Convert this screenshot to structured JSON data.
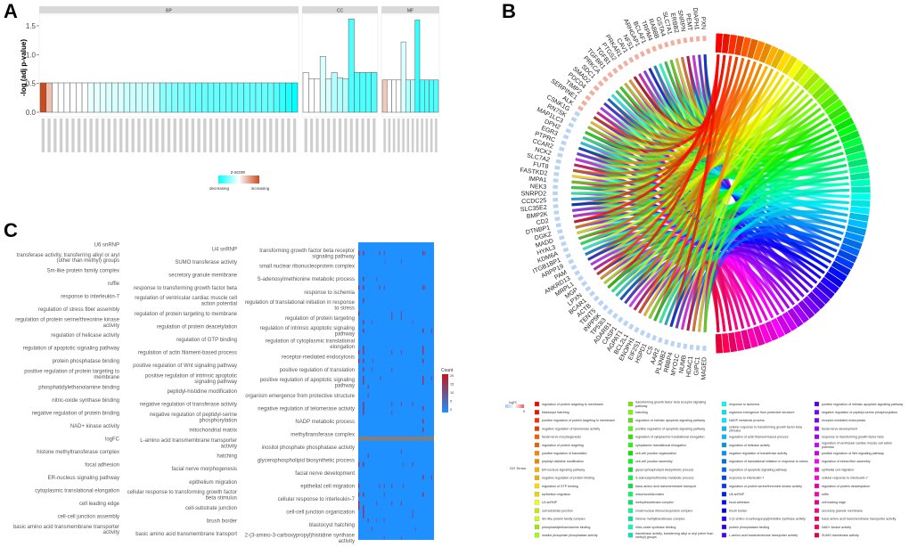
{
  "panels": {
    "a": "A",
    "b": "B",
    "c": "C"
  },
  "chart_data": [
    {
      "panel": "A",
      "type": "bar",
      "ylabel": "-log (adj p-value)",
      "ylim": [
        0,
        1.7
      ],
      "yticks": [
        "0.0",
        "0.5",
        "1.0",
        "1.5"
      ],
      "facets": [
        {
          "name": "BP",
          "values": [
            0.51,
            0.51,
            0.51,
            0.51,
            0.51,
            0.51,
            0.51,
            0.51,
            0.51,
            0.51,
            0.51,
            0.51,
            0.51,
            0.51,
            0.51,
            0.51,
            0.51,
            0.51,
            0.51,
            0.51,
            0.51,
            0.51,
            0.51,
            0.51,
            0.51,
            0.51,
            0.51,
            0.51,
            0.51,
            0.51,
            0.51,
            0.51,
            0.51,
            0.51,
            0.51,
            0.51,
            0.51,
            0.51,
            0.51,
            0.51,
            0.51,
            0.51,
            0.51
          ],
          "zscore": [
            1,
            0.35,
            0,
            0,
            0,
            0,
            0,
            0,
            -0.1,
            -0.1,
            -0.1,
            -0.15,
            -0.15,
            -0.15,
            -0.2,
            -0.2,
            -0.2,
            -0.2,
            -0.2,
            -0.25,
            -0.45,
            -0.45,
            -0.5,
            -0.5,
            -0.55,
            -0.55,
            -0.6,
            -0.6,
            -0.6,
            -0.6,
            -0.6,
            -0.6,
            -0.6,
            -0.6,
            -0.6,
            -0.6,
            -0.6,
            -0.6,
            -0.6,
            -0.7,
            -0.8,
            -0.9,
            -1
          ]
        },
        {
          "name": "CC",
          "values": [
            0.69,
            0.58,
            0.58,
            0.97,
            0.58,
            0.69,
            0.6,
            0.58,
            1.62,
            0.69,
            0.69,
            0.69,
            0.69
          ],
          "zscore": [
            0,
            0,
            0,
            -0.15,
            -0.15,
            -0.3,
            -0.3,
            -0.3,
            -0.7,
            -0.7,
            -0.7,
            -0.7,
            -0.7
          ]
        },
        {
          "name": "MF",
          "values": [
            0.56,
            0.56,
            0.56,
            0.56,
            1.22,
            0.56,
            0.56,
            1.6,
            0.56,
            0.56,
            0.56,
            0.56
          ],
          "zscore": [
            0.3,
            0,
            0,
            0,
            -0.15,
            -0.3,
            -0.3,
            -0.8,
            -0.7,
            -0.7,
            -0.7,
            -0.7
          ]
        }
      ],
      "legend": {
        "title": "z-score",
        "low": "decreasing",
        "high": "increasing",
        "low_color": "#00ffff",
        "mid_color": "#ffffff",
        "high_color": "#cc4a1c",
        "placement": "bottom"
      }
    },
    {
      "panel": "B",
      "type": "chord",
      "genes_up": [
        "PXN",
        "DIAPH1",
        "PEMT",
        "SNRPN",
        "ERBB2",
        "SLC7A1",
        "GSTA4",
        "RAB8B",
        "TRPM4",
        "BCLAF1",
        "ARHGAP1",
        "NFS1",
        "CAV1",
        "PRKAR1",
        "PTGS2",
        "TGFB1",
        "TGFBR1",
        "PRKCA",
        "SDC1",
        "SMAD2",
        "PDCD4",
        "TIMP2",
        "SERPINE1",
        "ALK"
      ],
      "genes_down": [
        "CSNK1G",
        "RN7SK",
        "MAP1LC3",
        "DPH2",
        "EGR3",
        "PTPRC",
        "CCAR2",
        "NCK2",
        "SLC7A2",
        "FUT8",
        "FASTKD2",
        "IMPA1",
        "NEK3",
        "SNRPD2",
        "CCDC25",
        "SLC35E2",
        "BMP2K",
        "CD2",
        "DTNBP1",
        "DGKZ",
        "MADD",
        "HYAL3",
        "KDM6A",
        "ITGB1BP1",
        "ARPP19",
        "PAM",
        "ANKRD13",
        "MRPL1",
        "MGP",
        "LPXN",
        "BCAR1",
        "ACTB",
        "TENT5",
        "INPP5K",
        "TP53I3",
        "ADARB1",
        "CASP1",
        "AGPAT1",
        "BCL2L1",
        "ENOPH1",
        "EIF2S1",
        "HSPD1",
        "CS",
        "AAR2",
        "PLXNB2",
        "RBBP4",
        "MYO1C",
        "NUMB",
        "HDAC1",
        "GIPC1",
        "MAGED"
      ],
      "logfc_legend": {
        "title": "logFC",
        "tick": "5",
        "low_color": "#a9c8f0",
        "high_color": "#e06060"
      },
      "terms_title": "GO Terms",
      "terms": [
        "regulation of protein targeting to membrane",
        "blastocyst hatching",
        "positive regulation of protein targeting to membrane",
        "negative regulation of telomerase activity",
        "facial nerve morphogenesis",
        "regulation of protein targeting",
        "positive regulation of translation",
        "peptidyl-histidine modification",
        "ER-nucleus signaling pathway",
        "negative regulation of protein binding",
        "regulation of GTP binding",
        "epithelium migration",
        "U4 snRNP",
        "cell-substrate junction",
        "Sm-like protein family complex",
        "phosphatidylethanolamine binding",
        "inositol phosphate phosphatase activity",
        "transforming growth factor beta receptor signaling pathway",
        "hatching",
        "regulation of intrinsic apoptotic signaling pathway",
        "positive regulation of apoptotic signaling pathway",
        "regulation of cytoplasmic translational elongation",
        "cytoplasmic translational elongation",
        "cell-cell junction organization",
        "cell-cell junction assembly",
        "glycerophospholipid biosynthetic process",
        "S-adenosylmethionine metabolic process",
        "basic amino acid transmembrane transport",
        "mitochondrial matrix",
        "methyltransferase complex",
        "small nuclear ribonucleoprotein complex",
        "histone methyltransferase complex",
        "nitric-oxide synthase binding",
        "transferase activity, transferring alkyl or aryl (other than methyl) groups",
        "response to ischemia",
        "organism emergence from protective structure",
        "NADP metabolic process",
        "cellular response to transforming growth factor beta stimulus",
        "regulation of actin filament-based process",
        "regulation of helicase activity",
        "negative regulation of transferase activity",
        "regulation of translational initiation in response to stress",
        "regulation of apoptotic signaling pathway",
        "response to interleukin-7",
        "regulation of protein serine/threonine kinase activity",
        "U6 snRNP",
        "focal adhesion",
        "brush border",
        "2-(3-amino-3-carboxypropyl)histidine synthase activity",
        "protein phosphatase binding",
        "L-amino acid transmembrane transporter activity",
        "positive regulation of intrinsic apoptotic signaling pathway",
        "negative regulation of peptidyl-serine phosphorylation",
        "receptor-mediated endocytosis",
        "facial nerve development",
        "response to transforming growth factor beta",
        "regulation of ventricular cardiac muscle cell action potential",
        "positive regulation of Wnt signaling pathway",
        "regulation of stress fiber assembly",
        "epithelial cell migration",
        "cellular response to interleukin-7",
        "regulation of protein deacetylation",
        "ruffle",
        "cell leading edge",
        "secretory granule membrane",
        "basic amino acid transmembrane transporter activity",
        "NAD+ kinase activity",
        "SUMO transferase activity"
      ]
    },
    {
      "panel": "C",
      "type": "heatmap",
      "rows": [
        "U6 snRNP",
        "U4 snRNP",
        "transforming growth factor beta receptor signaling pathway",
        "transferase activity, transferring alkyl or aryl (other than methyl) groups",
        "SUMO transferase activity",
        "small nuclear ribonucleoprotein complex",
        "Sm-like protein family complex",
        "secretory granule membrane",
        "S-adenosylmethionine metabolic process",
        "ruffle",
        "response to transforming growth factor beta",
        "response to ischemia",
        "response to interleukin-7",
        "regulation of ventricular cardiac muscle cell action potential",
        "regulation of translational initiation in response to stress",
        "regulation of stress fiber assembly",
        "regulation of protein targeting to membrane",
        "regulation of protein targeting",
        "regulation of protein serine/threonine kinase activity",
        "regulation of protein deacetylation",
        "regulation of intrinsic apoptotic signaling pathway",
        "regulation of helicase activity",
        "regulation of GTP binding",
        "regulation of cytoplasmic translational elongation",
        "regulation of apoptotic signaling pathway",
        "regulation of actin filament-based process",
        "receptor-mediated endocytosis",
        "protein phosphatase binding",
        "positive regulation of Wnt signaling pathway",
        "positive regulation of translation",
        "positive regulation of protein targeting to membrane",
        "positive regulation of intrinsic apoptotic signaling pathway",
        "positive regulation of apoptotic signaling pathway",
        "phosphatidylethanolamine binding",
        "peptidyl-histidine modification",
        "organism emergence from protective structure",
        "nitric-oxide synthase binding",
        "negative regulation of transferase activity",
        "negative regulation of telomerase activity",
        "negative regulation of protein binding",
        "negative regulation of peptidyl-serine phosphorylation",
        "NADP metabolic process",
        "NAD+ kinase activity",
        "mitochondrial matrix",
        "methyltransferase complex",
        "logFC",
        "L-amino acid transmembrane transporter activity",
        "inositol phosphate phosphatase activity",
        "histone methyltransferase complex",
        "hatching",
        "glycerophospholipid biosynthetic process",
        "focal adhesion",
        "facial nerve morphogenesis",
        "facial nerve development",
        "ER-nucleus signaling pathway",
        "epithelium migration",
        "epithelial cell migration",
        "cytoplasmic translational elongation",
        "cellular response to transforming growth factor beta stimulus",
        "cellular response to interleukin-7",
        "cell leading edge",
        "cell-substrate junction",
        "cell-cell junction organization",
        "cell-cell junction assembly",
        "brush border",
        "blastocyst hatching",
        "basic amino acid transmembrane transporter activity",
        "basic amino acid transmembrane transport",
        "2-(3-amino-3-carboxypropyl)histidine synthase activity"
      ],
      "na_row": "logFC",
      "strong_columns": [
        0,
        5,
        68
      ],
      "cells": [
        [
          2,
          0,
          20
        ],
        [
          2,
          5,
          20
        ],
        [
          2,
          22,
          12
        ],
        [
          2,
          27,
          10
        ],
        [
          2,
          68,
          20
        ],
        [
          2,
          70,
          10
        ],
        [
          4,
          45,
          8
        ],
        [
          4,
          28,
          6
        ],
        [
          10,
          0,
          20
        ],
        [
          10,
          5,
          20
        ],
        [
          10,
          22,
          12
        ],
        [
          10,
          27,
          10
        ],
        [
          10,
          68,
          20
        ],
        [
          10,
          70,
          10
        ],
        [
          8,
          5,
          20
        ],
        [
          8,
          19,
          8
        ],
        [
          13,
          5,
          20
        ],
        [
          16,
          0,
          20
        ],
        [
          16,
          35,
          12
        ],
        [
          16,
          45,
          12
        ],
        [
          17,
          35,
          12
        ],
        [
          17,
          45,
          12
        ],
        [
          18,
          5,
          20
        ],
        [
          18,
          14,
          8
        ],
        [
          18,
          57,
          6
        ],
        [
          20,
          5,
          20
        ],
        [
          20,
          68,
          20
        ],
        [
          20,
          77,
          12
        ],
        [
          24,
          5,
          20
        ],
        [
          24,
          68,
          20
        ],
        [
          25,
          0,
          20
        ],
        [
          25,
          5,
          20
        ],
        [
          25,
          35,
          12
        ],
        [
          25,
          45,
          12
        ],
        [
          25,
          68,
          20
        ],
        [
          27,
          0,
          20
        ],
        [
          27,
          5,
          20
        ],
        [
          27,
          15,
          10
        ],
        [
          27,
          68,
          20
        ],
        [
          29,
          5,
          20
        ],
        [
          29,
          14,
          10
        ],
        [
          29,
          35,
          10
        ],
        [
          31,
          5,
          20
        ],
        [
          31,
          23,
          10
        ],
        [
          31,
          68,
          20
        ],
        [
          31,
          77,
          10
        ],
        [
          32,
          5,
          20
        ],
        [
          32,
          68,
          20
        ],
        [
          33,
          10,
          14
        ],
        [
          35,
          10,
          12
        ],
        [
          37,
          5,
          20
        ],
        [
          37,
          35,
          12
        ],
        [
          37,
          45,
          12
        ],
        [
          37,
          57,
          10
        ],
        [
          38,
          5,
          20
        ],
        [
          38,
          68,
          20
        ],
        [
          39,
          5,
          20
        ],
        [
          39,
          35,
          10
        ],
        [
          41,
          68,
          20
        ],
        [
          43,
          68,
          20
        ],
        [
          48,
          45,
          10
        ],
        [
          49,
          10,
          14
        ],
        [
          51,
          0,
          20
        ],
        [
          51,
          5,
          20
        ],
        [
          51,
          57,
          12
        ],
        [
          51,
          47,
          8
        ],
        [
          54,
          68,
          20
        ],
        [
          54,
          77,
          12
        ],
        [
          56,
          0,
          20
        ],
        [
          56,
          22,
          12
        ],
        [
          56,
          27,
          10
        ],
        [
          56,
          35,
          12
        ],
        [
          56,
          47,
          10
        ],
        [
          58,
          0,
          20
        ],
        [
          58,
          5,
          20
        ],
        [
          58,
          27,
          10
        ],
        [
          58,
          68,
          20
        ],
        [
          60,
          0,
          20
        ],
        [
          60,
          19,
          10
        ],
        [
          60,
          35,
          12
        ],
        [
          60,
          45,
          12
        ],
        [
          61,
          0,
          20
        ],
        [
          61,
          5,
          20
        ],
        [
          62,
          5,
          20
        ],
        [
          62,
          57,
          10
        ],
        [
          63,
          5,
          20
        ],
        [
          63,
          57,
          10
        ],
        [
          64,
          10,
          14
        ],
        [
          64,
          19,
          8
        ],
        [
          64,
          27,
          8
        ],
        [
          66,
          14,
          10
        ],
        [
          66,
          60,
          8
        ],
        [
          68,
          27,
          8
        ],
        [
          68,
          45,
          8
        ]
      ],
      "n_columns": 80,
      "legend": {
        "title": "Count",
        "ticks": [
          "20",
          "15",
          "10",
          "5",
          "0"
        ],
        "low_color": "#1e90ff",
        "high_color": "#c4161c",
        "na_color": "#808080",
        "placement": "right"
      }
    }
  ]
}
